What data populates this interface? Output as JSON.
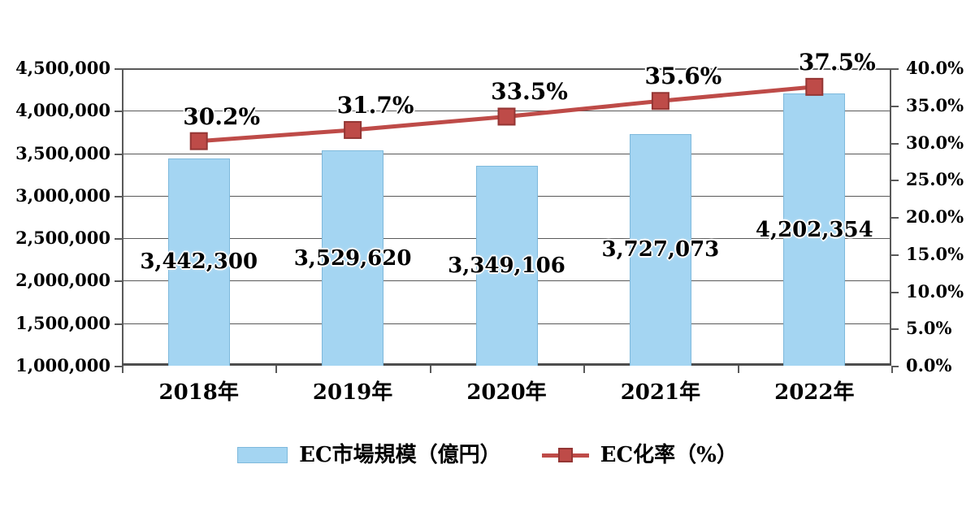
{
  "chart_data": {
    "type": "combo-bar-line",
    "title": "",
    "categories": [
      "2018年",
      "2019年",
      "2020年",
      "2021年",
      "2022年"
    ],
    "series": [
      {
        "name": "EC市場規模（億円）",
        "type": "bar",
        "axis": "left",
        "values": [
          3442300,
          3529620,
          3349106,
          3727073,
          4202354
        ],
        "data_labels": [
          "3,442,300",
          "3,529,620",
          "3,349,106",
          "3,727,073",
          "4,202,354"
        ],
        "fill_color": "#A4D5F2",
        "border_color": "#7EB9DC"
      },
      {
        "name": "EC化率（%）",
        "type": "line",
        "axis": "right",
        "values": [
          30.2,
          31.7,
          33.5,
          35.6,
          37.5
        ],
        "data_labels": [
          "30.2%",
          "31.7%",
          "33.5%",
          "35.6%",
          "37.5%"
        ],
        "line_color": "#BE4B48",
        "marker": "square",
        "marker_border_color": "#943634"
      }
    ],
    "left_axis": {
      "min": 1000000,
      "max": 4500000,
      "step": 500000,
      "tick_labels": [
        "4,500,000",
        "4,000,000",
        "3,500,000",
        "3,000,000",
        "2,500,000",
        "2,000,000",
        "1,500,000",
        "1,000,000"
      ]
    },
    "right_axis": {
      "min": 0,
      "max": 40,
      "step": 5,
      "tick_labels": [
        "40.0%",
        "35.0%",
        "30.0%",
        "25.0%",
        "20.0%",
        "15.0%",
        "10.0%",
        "5.0%",
        "0.0%"
      ]
    },
    "grid": true,
    "legend_position": "bottom",
    "colors": {
      "grid": "#595959",
      "axis": "#4D4D4D",
      "text": "#000000",
      "background": "#FFFFFF"
    }
  }
}
